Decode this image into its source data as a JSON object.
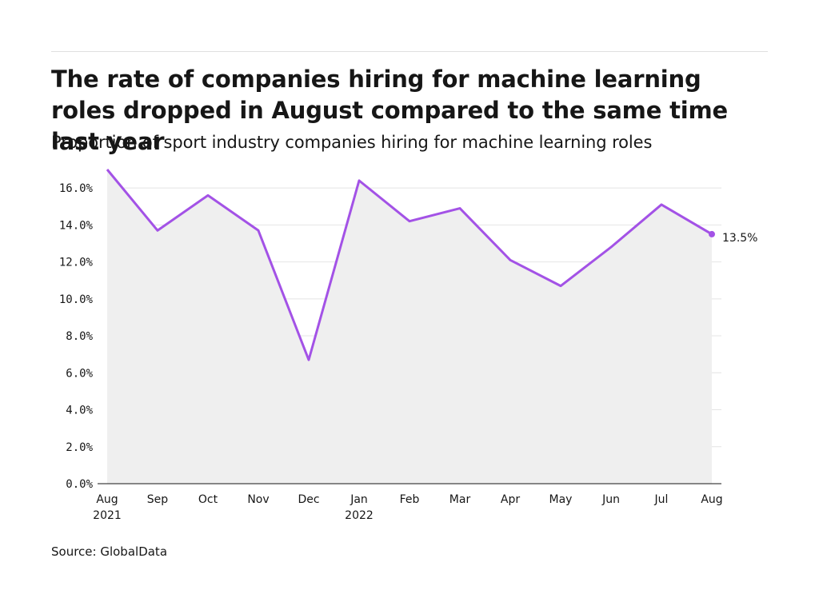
{
  "title": "The rate of companies hiring for machine learning roles dropped in August compared to the same time last year",
  "subtitle": "Proportion of sport industry companies hiring for machine learning roles",
  "source": "Source: GlobalData",
  "colors": {
    "line": "#a352e6",
    "area": "#efefef",
    "grid": "#e4e4e4",
    "axis": "#161616"
  },
  "chart_data": {
    "type": "area",
    "title": "The rate of companies hiring for machine learning roles dropped in August compared to the same time last year",
    "subtitle": "Proportion of sport industry companies hiring for machine learning roles",
    "x_labels": [
      [
        "Aug",
        "2021"
      ],
      [
        "Sep",
        ""
      ],
      [
        "Oct",
        ""
      ],
      [
        "Nov",
        ""
      ],
      [
        "Dec",
        ""
      ],
      [
        "Jan",
        "2022"
      ],
      [
        "Feb",
        ""
      ],
      [
        "Mar",
        ""
      ],
      [
        "Apr",
        ""
      ],
      [
        "May",
        ""
      ],
      [
        "Jun",
        ""
      ],
      [
        "Jul",
        ""
      ],
      [
        "Aug",
        ""
      ]
    ],
    "series": [
      {
        "values": [
          17.0,
          13.7,
          15.6,
          13.7,
          6.7,
          16.4,
          14.2,
          14.9,
          12.1,
          10.7,
          12.8,
          15.1,
          13.5
        ]
      }
    ],
    "ylim": [
      0,
      17
    ],
    "yticks": [
      0,
      2,
      4,
      6,
      8,
      10,
      12,
      14,
      16
    ],
    "ytick_labels": [
      "0.0%",
      "2.0%",
      "4.0%",
      "6.0%",
      "8.0%",
      "10.0%",
      "12.0%",
      "14.0%",
      "16.0%"
    ],
    "end_label": "13.5%",
    "grid": true
  }
}
